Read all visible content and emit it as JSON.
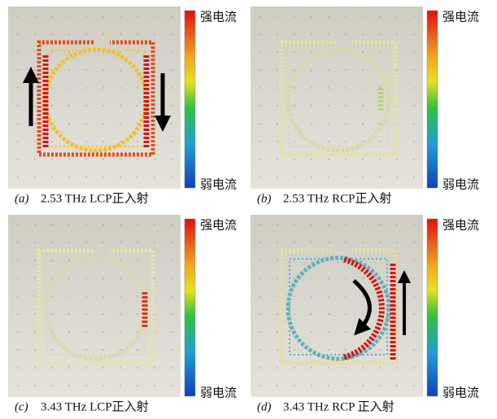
{
  "panels": [
    {
      "label": "(a)",
      "caption": "2.53 THz LCP正入射",
      "bar_top": "强电流",
      "bar_bottom": "弱电流"
    },
    {
      "label": "(b)",
      "caption": "2.53 THz RCP正入射",
      "bar_top": "强电流",
      "bar_bottom": "弱电流"
    },
    {
      "label": "(c)",
      "caption": "3.43 THz LCP正入射",
      "bar_top": "强电流",
      "bar_bottom": "弱电流"
    },
    {
      "label": "(d)",
      "caption": "3.43 THz RCP 正入射",
      "bar_top": "强电流",
      "bar_bottom": "弱电流"
    }
  ]
}
